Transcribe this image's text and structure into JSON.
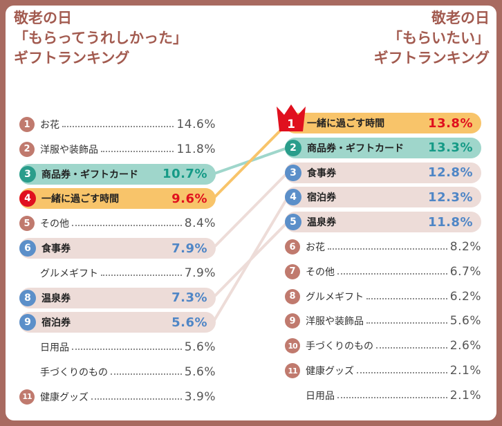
{
  "colors": {
    "frame": "#a86a60",
    "title": "#a25a4f",
    "badge_brown": "#c07a6e",
    "badge_teal": "#2a9d8b",
    "badge_red": "#e0101e",
    "badge_blue": "#5b8fc9",
    "pill_teal": "#9fd6cb",
    "pill_orange": "#f8c46a",
    "pill_pink": "#eddcd8",
    "value_teal": "#159a86",
    "value_red": "#e0101e",
    "value_blue": "#4f86c6"
  },
  "chart_data": [
    {
      "type": "table",
      "title_lines": [
        "敬老の日",
        "「もらってうれしかった」",
        "ギフトランキング"
      ],
      "rows": [
        {
          "rank": "1",
          "label": "お花",
          "value": "14.6%"
        },
        {
          "rank": "2",
          "label": "洋服や装飾品",
          "value": "11.8%"
        },
        {
          "rank": "3",
          "label": "商品券・ギフトカード",
          "value": "10.7%"
        },
        {
          "rank": "4",
          "label": "一緒に過ごす時間",
          "value": "9.6%"
        },
        {
          "rank": "5",
          "label": "その他",
          "value": "8.4%"
        },
        {
          "rank": "6",
          "label": "食事券",
          "value": "7.9%"
        },
        {
          "rank": "",
          "label": "グルメギフト",
          "value": "7.9%"
        },
        {
          "rank": "8",
          "label": "温泉券",
          "value": "7.3%"
        },
        {
          "rank": "9",
          "label": "宿泊券",
          "value": "5.6%"
        },
        {
          "rank": "",
          "label": "日用品",
          "value": "5.6%"
        },
        {
          "rank": "",
          "label": "手づくりのもの",
          "value": "5.6%"
        },
        {
          "rank": "11",
          "label": "健康グッズ",
          "value": "3.9%"
        }
      ]
    },
    {
      "type": "table",
      "title_lines": [
        "敬老の日",
        "「もらいたい」",
        "ギフトランキング"
      ],
      "rows": [
        {
          "rank": "1",
          "label": "一緒に過ごす時間",
          "value": "13.8%"
        },
        {
          "rank": "2",
          "label": "商品券・ギフトカード",
          "value": "13.3%"
        },
        {
          "rank": "3",
          "label": "食事券",
          "value": "12.8%"
        },
        {
          "rank": "4",
          "label": "宿泊券",
          "value": "12.3%"
        },
        {
          "rank": "5",
          "label": "温泉券",
          "value": "11.8%"
        },
        {
          "rank": "6",
          "label": "お花",
          "value": "8.2%"
        },
        {
          "rank": "7",
          "label": "その他",
          "value": "6.7%"
        },
        {
          "rank": "8",
          "label": "グルメギフト",
          "value": "6.2%"
        },
        {
          "rank": "9",
          "label": "洋服や装飾品",
          "value": "5.6%"
        },
        {
          "rank": "10",
          "label": "手づくりのもの",
          "value": "2.6%"
        },
        {
          "rank": "11",
          "label": "健康グッズ",
          "value": "2.1%"
        },
        {
          "rank": "",
          "label": "日用品",
          "value": "2.1%"
        }
      ]
    }
  ]
}
